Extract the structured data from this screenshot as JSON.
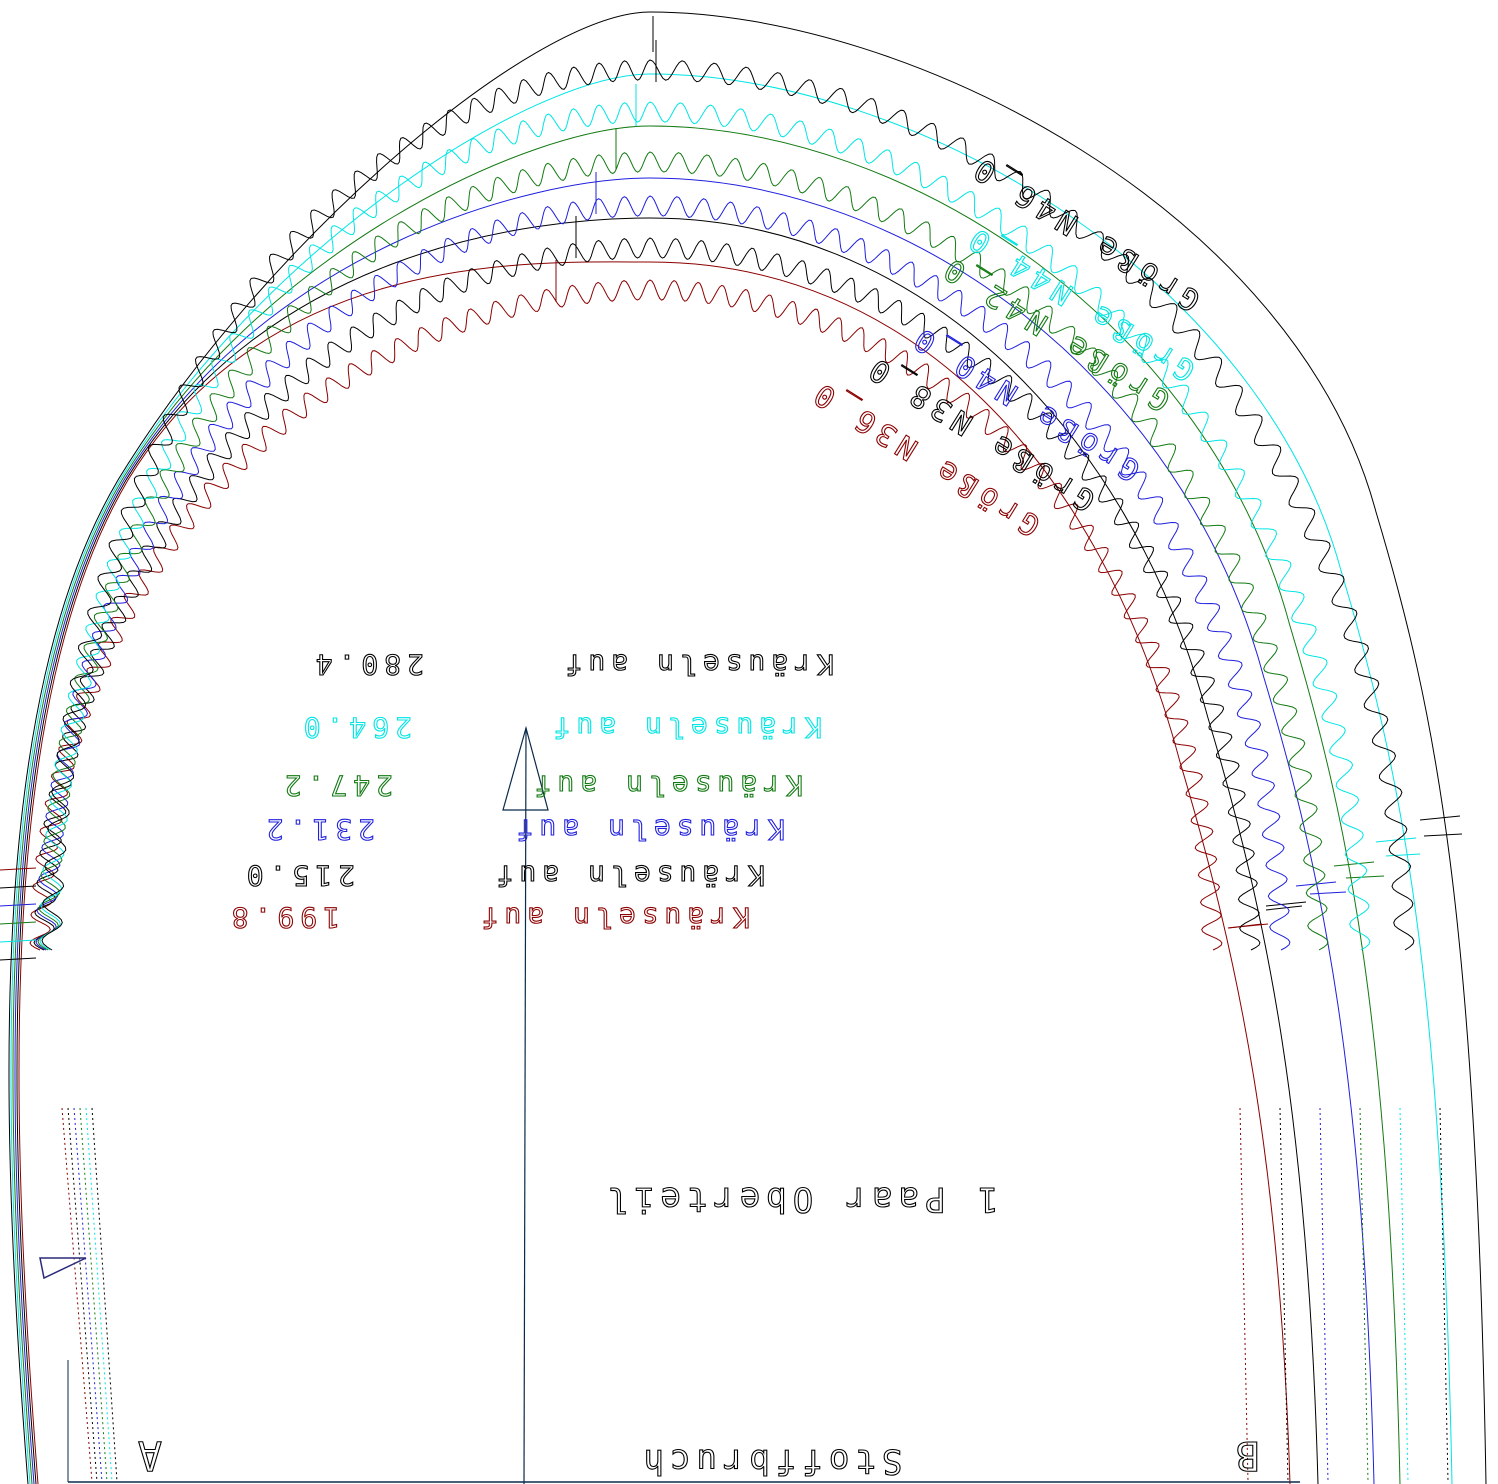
{
  "pattern": {
    "title": "1 Paar Oberteil",
    "fold_label": "Stoffbruch",
    "point_a": "A",
    "point_b": "B",
    "sizes": [
      {
        "name": "Größe N36_0",
        "gather_text": "Kräuseln auf",
        "gather_value": "199.8",
        "color": "#8b0000"
      },
      {
        "name": "Größe N38_0",
        "gather_text": "Kräuseln auf",
        "gather_value": "215.0",
        "color": "#000000"
      },
      {
        "name": "Größe N40_0",
        "gather_text": "Kräuseln auf",
        "gather_value": "231.2",
        "color": "#1f1fdd"
      },
      {
        "name": "Größe N42_0",
        "gather_text": "Kräuseln auf",
        "gather_value": "247.2",
        "color": "#137a13"
      },
      {
        "name": "Größe N44_0",
        "gather_text": "Kräuseln auf",
        "gather_value": "264.0",
        "color": "#00e5e5"
      },
      {
        "name": "Größe N46_0",
        "gather_text": "Kräuseln auf",
        "gather_value": "280.4",
        "color": "#000000"
      }
    ]
  }
}
